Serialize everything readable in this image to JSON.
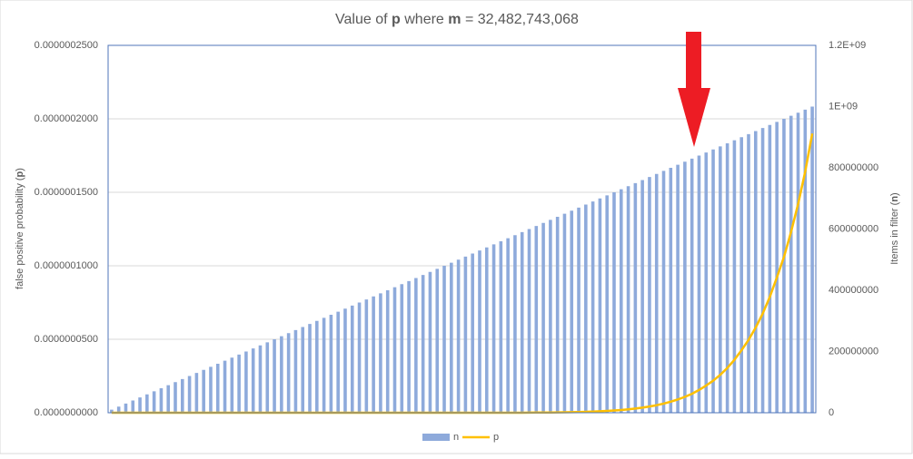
{
  "chart_data": {
    "type": "combo",
    "title": [
      "Value of ",
      "p",
      " where ",
      "m",
      " = 32,482,743,068"
    ],
    "y_label": [
      "false positive probability (",
      "p",
      ")"
    ],
    "y2_label": [
      "Items in filter (",
      "n",
      ")"
    ],
    "ylim": [
      0,
      2.5e-07
    ],
    "yticks": [
      {
        "value": 0,
        "label": "0.0000000000"
      },
      {
        "value": 5e-08,
        "label": "0.0000000500"
      },
      {
        "value": 1e-07,
        "label": "0.0000001000"
      },
      {
        "value": 1.5e-07,
        "label": "0.0000001500"
      },
      {
        "value": 2e-07,
        "label": "0.0000002000"
      },
      {
        "value": 2.5e-07,
        "label": "0.0000002500"
      }
    ],
    "y2lim": [
      0,
      1200000000
    ],
    "y2ticks": [
      0,
      200000000,
      400000000,
      600000000,
      800000000,
      {
        "value": 1000000000,
        "label": "1E+09"
      },
      {
        "value": 1200000000,
        "label": "1.2E+09"
      }
    ],
    "grid": true,
    "legend": "bottom",
    "series": [
      {
        "name": "n",
        "type": "bar",
        "axis": "y2",
        "color": "#8eaadb",
        "values": [
          10000000,
          20000000,
          30000000,
          40000000,
          50000000,
          60000000,
          70000000,
          80000000,
          90000000,
          100000000,
          110000000,
          120000000,
          130000000,
          140000000,
          150000000,
          160000000,
          170000000,
          180000000,
          190000000,
          200000000,
          210000000,
          220000000,
          230000000,
          240000000,
          250000000,
          260000000,
          270000000,
          280000000,
          290000000,
          300000000,
          310000000,
          320000000,
          330000000,
          340000000,
          350000000,
          360000000,
          370000000,
          380000000,
          390000000,
          400000000,
          410000000,
          420000000,
          430000000,
          440000000,
          450000000,
          460000000,
          470000000,
          480000000,
          490000000,
          500000000,
          510000000,
          520000000,
          530000000,
          540000000,
          550000000,
          560000000,
          570000000,
          580000000,
          590000000,
          600000000,
          610000000,
          620000000,
          630000000,
          640000000,
          650000000,
          660000000,
          670000000,
          680000000,
          690000000,
          700000000,
          710000000,
          720000000,
          730000000,
          740000000,
          750000000,
          760000000,
          770000000,
          780000000,
          790000000,
          800000000,
          810000000,
          820000000,
          830000000,
          840000000,
          850000000,
          860000000,
          870000000,
          880000000,
          890000000,
          900000000,
          910000000,
          920000000,
          930000000,
          940000000,
          950000000,
          960000000,
          970000000,
          980000000,
          990000000,
          1000000000
        ]
      },
      {
        "name": "p",
        "type": "line",
        "color": "#ffc000",
        "values": [
          0,
          0,
          0,
          0,
          0,
          0,
          0,
          0,
          0,
          0,
          0,
          0,
          0,
          0,
          0,
          0,
          0,
          0,
          0,
          0,
          0,
          0,
          0,
          0,
          0,
          0,
          0,
          0,
          0,
          0,
          0,
          0,
          0,
          0,
          0,
          0,
          0,
          0,
          0,
          0,
          0,
          0,
          0,
          0,
          0,
          0,
          0,
          0,
          0,
          0,
          0,
          0,
          0,
          0,
          0,
          0,
          0,
          0,
          0,
          9e-11,
          1.16e-10,
          1.49e-10,
          1.92e-10,
          2.47e-10,
          3.17e-10,
          3.99e-10,
          5.02e-10,
          6.32e-10,
          7.96e-10,
          1e-09,
          1.235e-09,
          1.525e-09,
          1.88e-09,
          2.33e-09,
          2.87e-09,
          3.48e-09,
          4.22e-09,
          5.12e-09,
          6.22e-09,
          7.55e-09,
          9.03e-09,
          1.08e-08,
          1.29e-08,
          1.55e-08,
          1.85e-08,
          2.18e-08,
          2.58e-08,
          3.05e-08,
          3.6e-08,
          4.25e-08,
          4.96e-08,
          5.79e-08,
          6.75e-08,
          7.88e-08,
          9.2e-08,
          1.06e-07,
          1.23e-07,
          1.42e-07,
          1.64e-07,
          1.9e-07
        ]
      }
    ]
  }
}
